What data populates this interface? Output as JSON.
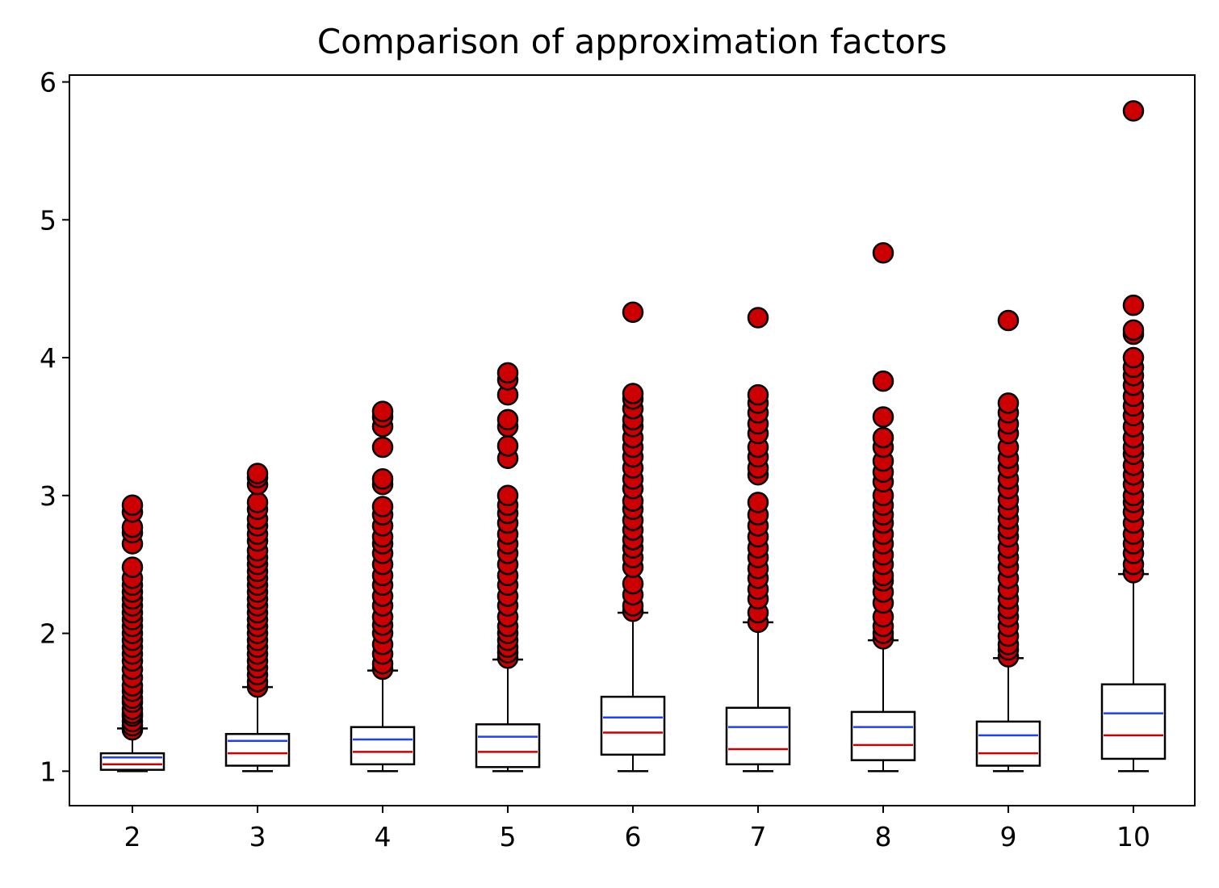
{
  "chart_data": {
    "type": "box",
    "title": "Comparison of approximation factors",
    "xlabel": "",
    "ylabel": "",
    "ylim": [
      0.75,
      6.05
    ],
    "yticks": [
      1,
      2,
      3,
      4,
      5,
      6
    ],
    "categories": [
      "2",
      "3",
      "4",
      "5",
      "6",
      "7",
      "8",
      "9",
      "10"
    ],
    "median_color": "#cc0000",
    "mean_color": "#1f3fff",
    "outlier_fill": "#cc0000",
    "outlier_edge": "#000000",
    "boxes": [
      {
        "category": "2",
        "whislo": 1.0,
        "q1": 1.01,
        "med": 1.05,
        "mean": 1.1,
        "q3": 1.13,
        "whishi": 1.31,
        "fliers": [
          1.3,
          1.33,
          1.36,
          1.4,
          1.42,
          1.45,
          1.5,
          1.53,
          1.58,
          1.62,
          1.68,
          1.74,
          1.8,
          1.85,
          1.9,
          1.95,
          2.0,
          2.05,
          2.1,
          2.15,
          2.2,
          2.25,
          2.3,
          2.35,
          2.4,
          2.48,
          2.65,
          2.73,
          2.77,
          2.88,
          2.93
        ]
      },
      {
        "category": "3",
        "whislo": 1.0,
        "q1": 1.04,
        "med": 1.13,
        "mean": 1.22,
        "q3": 1.27,
        "whishi": 1.61,
        "fliers": [
          1.61,
          1.65,
          1.7,
          1.75,
          1.8,
          1.85,
          1.9,
          1.95,
          2.0,
          2.05,
          2.1,
          2.15,
          2.2,
          2.25,
          2.3,
          2.35,
          2.4,
          2.45,
          2.5,
          2.55,
          2.6,
          2.67,
          2.72,
          2.78,
          2.83,
          2.9,
          2.95,
          3.08,
          3.13,
          3.16
        ]
      },
      {
        "category": "4",
        "whislo": 1.0,
        "q1": 1.05,
        "med": 1.14,
        "mean": 1.23,
        "q3": 1.32,
        "whishi": 1.73,
        "fliers": [
          1.74,
          1.78,
          1.85,
          1.92,
          2.0,
          2.06,
          2.12,
          2.2,
          2.27,
          2.35,
          2.42,
          2.5,
          2.58,
          2.65,
          2.7,
          2.78,
          2.86,
          2.92,
          3.08,
          3.12,
          3.35,
          3.5,
          3.57,
          3.61
        ]
      },
      {
        "category": "5",
        "whislo": 1.0,
        "q1": 1.03,
        "med": 1.14,
        "mean": 1.25,
        "q3": 1.34,
        "whishi": 1.81,
        "fliers": [
          1.82,
          1.86,
          1.9,
          1.95,
          2.0,
          2.05,
          2.12,
          2.2,
          2.27,
          2.35,
          2.42,
          2.5,
          2.58,
          2.65,
          2.72,
          2.8,
          2.87,
          2.93,
          3.0,
          3.27,
          3.36,
          3.5,
          3.55,
          3.73,
          3.84,
          3.89
        ]
      },
      {
        "category": "6",
        "whislo": 1.0,
        "q1": 1.12,
        "med": 1.28,
        "mean": 1.39,
        "q3": 1.54,
        "whishi": 2.15,
        "fliers": [
          2.16,
          2.2,
          2.28,
          2.36,
          2.48,
          2.55,
          2.62,
          2.68,
          2.75,
          2.82,
          2.9,
          2.96,
          3.05,
          3.12,
          3.2,
          3.28,
          3.35,
          3.42,
          3.5,
          3.55,
          3.63,
          3.7,
          3.74,
          4.33
        ]
      },
      {
        "category": "7",
        "whislo": 1.0,
        "q1": 1.05,
        "med": 1.16,
        "mean": 1.32,
        "q3": 1.46,
        "whishi": 2.08,
        "fliers": [
          2.08,
          2.15,
          2.25,
          2.32,
          2.4,
          2.47,
          2.55,
          2.62,
          2.7,
          2.78,
          2.86,
          2.95,
          3.15,
          3.2,
          3.28,
          3.35,
          3.45,
          3.52,
          3.6,
          3.67,
          3.73,
          4.29
        ]
      },
      {
        "category": "8",
        "whislo": 1.0,
        "q1": 1.08,
        "med": 1.19,
        "mean": 1.32,
        "q3": 1.43,
        "whishi": 1.95,
        "fliers": [
          1.96,
          2.0,
          2.05,
          2.12,
          2.22,
          2.3,
          2.38,
          2.42,
          2.5,
          2.57,
          2.65,
          2.72,
          2.8,
          2.86,
          2.93,
          3.0,
          3.1,
          3.17,
          3.25,
          3.35,
          3.42,
          3.57,
          3.83,
          4.76
        ]
      },
      {
        "category": "9",
        "whislo": 1.0,
        "q1": 1.04,
        "med": 1.13,
        "mean": 1.26,
        "q3": 1.36,
        "whishi": 1.82,
        "fliers": [
          1.83,
          1.88,
          1.92,
          1.98,
          2.05,
          2.12,
          2.18,
          2.25,
          2.32,
          2.4,
          2.48,
          2.55,
          2.62,
          2.7,
          2.76,
          2.83,
          2.9,
          2.97,
          3.05,
          3.12,
          3.2,
          3.27,
          3.35,
          3.45,
          3.52,
          3.6,
          3.67,
          4.27
        ]
      },
      {
        "category": "10",
        "whislo": 1.0,
        "q1": 1.09,
        "med": 1.26,
        "mean": 1.42,
        "q3": 1.63,
        "whishi": 2.43,
        "fliers": [
          2.44,
          2.5,
          2.58,
          2.65,
          2.72,
          2.8,
          2.88,
          2.95,
          3.0,
          3.08,
          3.15,
          3.22,
          3.3,
          3.35,
          3.42,
          3.5,
          3.58,
          3.65,
          3.72,
          3.8,
          3.87,
          3.93,
          4.0,
          4.17,
          4.2,
          4.38,
          5.79
        ]
      }
    ]
  }
}
